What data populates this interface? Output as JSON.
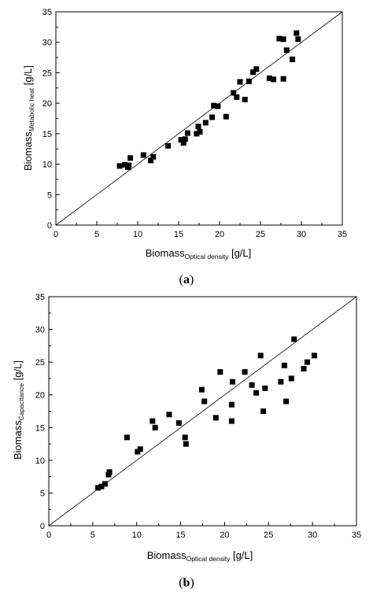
{
  "chart_data": [
    {
      "type": "scatter",
      "panel_label": {
        "open": "(",
        "letter": "a",
        "close": ")"
      },
      "xlabel": {
        "main": "Biomass",
        "sub": "Optical density",
        "unit": " [g/L]"
      },
      "ylabel": {
        "main": "Biomass",
        "sub": "Metabolic heat",
        "unit": " [g/L]"
      },
      "xlim": [
        0,
        35
      ],
      "ylim": [
        0,
        35
      ],
      "xticks": [
        "0",
        "5",
        "10",
        "15",
        "20",
        "25",
        "30",
        "35"
      ],
      "yticks": [
        "0",
        "5",
        "10",
        "15",
        "20",
        "25",
        "30",
        "35"
      ],
      "reference_line": {
        "from": [
          0,
          0
        ],
        "to": [
          35,
          35
        ]
      },
      "grid": false,
      "legend": "none",
      "marker": "square",
      "marker_color": "#000000",
      "points": [
        [
          7.8,
          9.7
        ],
        [
          8.4,
          9.9
        ],
        [
          8.8,
          9.5
        ],
        [
          8.9,
          9.8
        ],
        [
          9.1,
          11.0
        ],
        [
          10.7,
          11.5
        ],
        [
          11.6,
          10.6
        ],
        [
          11.9,
          11.2
        ],
        [
          13.7,
          13.0
        ],
        [
          15.3,
          14.0
        ],
        [
          15.6,
          13.5
        ],
        [
          15.8,
          14.1
        ],
        [
          16.1,
          15.1
        ],
        [
          17.2,
          15.0
        ],
        [
          17.4,
          16.2
        ],
        [
          17.6,
          15.3
        ],
        [
          18.3,
          16.8
        ],
        [
          19.1,
          17.7
        ],
        [
          19.3,
          19.6
        ],
        [
          19.8,
          19.5
        ],
        [
          20.8,
          17.8
        ],
        [
          21.7,
          21.7
        ],
        [
          22.1,
          21.0
        ],
        [
          22.5,
          23.5
        ],
        [
          23.1,
          20.6
        ],
        [
          23.6,
          23.6
        ],
        [
          24.1,
          25.1
        ],
        [
          24.5,
          25.6
        ],
        [
          26.1,
          24.1
        ],
        [
          26.6,
          23.9
        ],
        [
          27.3,
          30.6
        ],
        [
          27.8,
          30.5
        ],
        [
          27.8,
          24.0
        ],
        [
          28.2,
          28.7
        ],
        [
          28.9,
          27.2
        ],
        [
          29.4,
          31.5
        ],
        [
          29.6,
          30.5
        ]
      ]
    },
    {
      "type": "scatter",
      "panel_label": {
        "open": "(",
        "letter": "b",
        "close": ")"
      },
      "xlabel": {
        "main": "Biomass",
        "sub": "Optical density",
        "unit": " [g/L]"
      },
      "ylabel": {
        "main": "Biomass",
        "sub": "Capacitance",
        "unit": " [g/L]"
      },
      "xlim": [
        0,
        35
      ],
      "ylim": [
        0,
        35
      ],
      "xticks": [
        "0",
        "5",
        "10",
        "15",
        "20",
        "25",
        "30",
        "35"
      ],
      "yticks": [
        "0",
        "5",
        "10",
        "15",
        "20",
        "25",
        "30",
        "35"
      ],
      "reference_line": {
        "from": [
          0,
          0
        ],
        "to": [
          35,
          35
        ]
      },
      "grid": false,
      "legend": "none",
      "marker": "square",
      "marker_color": "#000000",
      "points": [
        [
          5.6,
          5.8
        ],
        [
          6.0,
          6.0
        ],
        [
          6.4,
          6.4
        ],
        [
          6.8,
          7.8
        ],
        [
          6.9,
          8.2
        ],
        [
          8.9,
          13.5
        ],
        [
          10.1,
          11.3
        ],
        [
          10.4,
          11.7
        ],
        [
          11.8,
          16.0
        ],
        [
          12.1,
          15.0
        ],
        [
          13.7,
          17.0
        ],
        [
          14.8,
          15.7
        ],
        [
          15.5,
          13.5
        ],
        [
          15.6,
          12.5
        ],
        [
          17.4,
          20.8
        ],
        [
          17.7,
          19.0
        ],
        [
          19.0,
          16.5
        ],
        [
          19.5,
          23.5
        ],
        [
          20.8,
          16.0
        ],
        [
          20.8,
          18.5
        ],
        [
          20.9,
          22.0
        ],
        [
          22.3,
          23.5
        ],
        [
          23.1,
          21.5
        ],
        [
          23.6,
          20.3
        ],
        [
          24.1,
          26.0
        ],
        [
          24.4,
          17.5
        ],
        [
          24.6,
          21.0
        ],
        [
          26.4,
          22.0
        ],
        [
          26.8,
          24.5
        ],
        [
          27.0,
          19.0
        ],
        [
          27.6,
          22.5
        ],
        [
          27.9,
          28.5
        ],
        [
          29.0,
          24.0
        ],
        [
          29.4,
          25.0
        ],
        [
          30.2,
          26.0
        ]
      ]
    }
  ]
}
